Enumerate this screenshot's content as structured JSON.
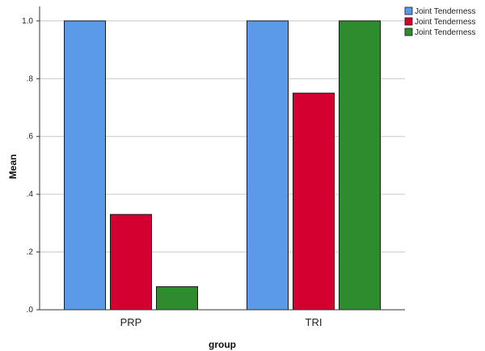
{
  "chart_data": {
    "type": "bar",
    "categories": [
      "PRP",
      "TRI"
    ],
    "series": [
      {
        "name": "Joint Tenderness",
        "color": "#5b9ae6",
        "values": [
          1.0,
          1.0
        ]
      },
      {
        "name": "Joint Tenderness",
        "color": "#d40030",
        "values": [
          0.33,
          0.75
        ]
      },
      {
        "name": "Joint Tenderness",
        "color": "#2e8b2e",
        "values": [
          0.08,
          1.0
        ]
      }
    ],
    "xlabel": "group",
    "ylabel": "Mean",
    "ylim": [
      0,
      1.05
    ],
    "yticks": [
      0,
      0.2,
      0.4,
      0.6,
      0.8,
      1.0
    ],
    "ytick_labels": [
      ".0",
      ".2",
      ".4",
      ".6",
      ".8",
      "1.0"
    ],
    "grid": true,
    "legend_position": "top-right"
  }
}
